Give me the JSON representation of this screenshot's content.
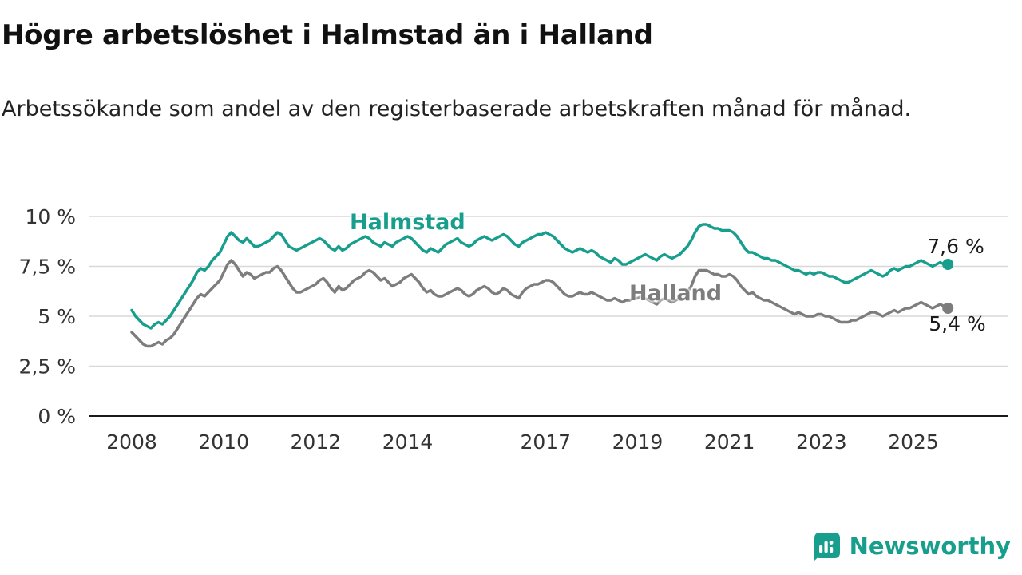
{
  "title": "Högre arbetslöshet i Halmstad än i Halland",
  "subtitle": "Arbetssökande som andel av den registerbaserade arbetskraften månad för månad.",
  "branding": {
    "name": "Newsworthy"
  },
  "colors": {
    "halmstad": "#189e8c",
    "halland": "#7d7d7d",
    "grid": "#d8d8d8",
    "axis": "#1a1a1a",
    "tick_text": "#333333",
    "brand_teal": "#189e8c"
  },
  "chart_data": {
    "type": "line",
    "title": "Högre arbetslöshet i Halmstad än i Halland",
    "subtitle": "Arbetssökande som andel av den registerbaserade arbetskraften månad för månad.",
    "x_unit": "month",
    "x_start": "2008-01",
    "x_end": "2025-10",
    "ylim": [
      0,
      10
    ],
    "grid": true,
    "legend_position": "inline-labels",
    "x_ticks": [
      2008,
      2010,
      2012,
      2014,
      2017,
      2019,
      2021,
      2023,
      2025
    ],
    "y_ticks": [
      {
        "value": 10,
        "label": "10 %"
      },
      {
        "value": 7.5,
        "label": "7,5 %"
      },
      {
        "value": 5,
        "label": "5 %"
      },
      {
        "value": 2.5,
        "label": "2,5 %"
      },
      {
        "value": 0,
        "label": "0 %"
      }
    ],
    "series": [
      {
        "name": "Halmstad",
        "color": "#189e8c",
        "end_label": "7,6 %",
        "end_value": 7.6,
        "values": [
          5.3,
          5.0,
          4.8,
          4.6,
          4.5,
          4.4,
          4.6,
          4.7,
          4.6,
          4.8,
          5.0,
          5.3,
          5.6,
          5.9,
          6.2,
          6.5,
          6.8,
          7.2,
          7.4,
          7.3,
          7.5,
          7.8,
          8.0,
          8.2,
          8.6,
          9.0,
          9.2,
          9.0,
          8.8,
          8.7,
          8.9,
          8.7,
          8.5,
          8.5,
          8.6,
          8.7,
          8.8,
          9.0,
          9.2,
          9.1,
          8.8,
          8.5,
          8.4,
          8.3,
          8.4,
          8.5,
          8.6,
          8.7,
          8.8,
          8.9,
          8.8,
          8.6,
          8.4,
          8.3,
          8.5,
          8.3,
          8.4,
          8.6,
          8.7,
          8.8,
          8.9,
          9.0,
          8.9,
          8.7,
          8.6,
          8.5,
          8.7,
          8.6,
          8.5,
          8.7,
          8.8,
          8.9,
          9.0,
          8.9,
          8.7,
          8.5,
          8.3,
          8.2,
          8.4,
          8.3,
          8.2,
          8.4,
          8.6,
          8.7,
          8.8,
          8.9,
          8.7,
          8.6,
          8.5,
          8.6,
          8.8,
          8.9,
          9.0,
          8.9,
          8.8,
          8.9,
          9.0,
          9.1,
          9.0,
          8.8,
          8.6,
          8.5,
          8.7,
          8.8,
          8.9,
          9.0,
          9.1,
          9.1,
          9.2,
          9.1,
          9.0,
          8.8,
          8.6,
          8.4,
          8.3,
          8.2,
          8.3,
          8.4,
          8.3,
          8.2,
          8.3,
          8.2,
          8.0,
          7.9,
          7.8,
          7.7,
          7.9,
          7.8,
          7.6,
          7.6,
          7.7,
          7.8,
          7.9,
          8.0,
          8.1,
          8.0,
          7.9,
          7.8,
          8.0,
          8.1,
          8.0,
          7.9,
          8.0,
          8.1,
          8.3,
          8.5,
          8.8,
          9.2,
          9.5,
          9.6,
          9.6,
          9.5,
          9.4,
          9.4,
          9.3,
          9.3,
          9.3,
          9.2,
          9.0,
          8.7,
          8.4,
          8.2,
          8.2,
          8.1,
          8.0,
          7.9,
          7.9,
          7.8,
          7.8,
          7.7,
          7.6,
          7.5,
          7.4,
          7.3,
          7.3,
          7.2,
          7.1,
          7.2,
          7.1,
          7.2,
          7.2,
          7.1,
          7.0,
          7.0,
          6.9,
          6.8,
          6.7,
          6.7,
          6.8,
          6.9,
          7.0,
          7.1,
          7.2,
          7.3,
          7.2,
          7.1,
          7.0,
          7.1,
          7.3,
          7.4,
          7.3,
          7.4,
          7.5,
          7.5,
          7.6,
          7.7,
          7.8,
          7.7,
          7.6,
          7.5,
          7.6,
          7.7,
          7.6,
          7.6
        ]
      },
      {
        "name": "Halland",
        "color": "#7d7d7d",
        "end_label": "5,4 %",
        "end_value": 5.4,
        "values": [
          4.2,
          4.0,
          3.8,
          3.6,
          3.5,
          3.5,
          3.6,
          3.7,
          3.6,
          3.8,
          3.9,
          4.1,
          4.4,
          4.7,
          5.0,
          5.3,
          5.6,
          5.9,
          6.1,
          6.0,
          6.2,
          6.4,
          6.6,
          6.8,
          7.2,
          7.6,
          7.8,
          7.6,
          7.3,
          7.0,
          7.2,
          7.1,
          6.9,
          7.0,
          7.1,
          7.2,
          7.2,
          7.4,
          7.5,
          7.3,
          7.0,
          6.7,
          6.4,
          6.2,
          6.2,
          6.3,
          6.4,
          6.5,
          6.6,
          6.8,
          6.9,
          6.7,
          6.4,
          6.2,
          6.5,
          6.3,
          6.4,
          6.6,
          6.8,
          6.9,
          7.0,
          7.2,
          7.3,
          7.2,
          7.0,
          6.8,
          6.9,
          6.7,
          6.5,
          6.6,
          6.7,
          6.9,
          7.0,
          7.1,
          6.9,
          6.7,
          6.4,
          6.2,
          6.3,
          6.1,
          6.0,
          6.0,
          6.1,
          6.2,
          6.3,
          6.4,
          6.3,
          6.1,
          6.0,
          6.1,
          6.3,
          6.4,
          6.5,
          6.4,
          6.2,
          6.1,
          6.2,
          6.4,
          6.3,
          6.1,
          6.0,
          5.9,
          6.2,
          6.4,
          6.5,
          6.6,
          6.6,
          6.7,
          6.8,
          6.8,
          6.7,
          6.5,
          6.3,
          6.1,
          6.0,
          6.0,
          6.1,
          6.2,
          6.1,
          6.1,
          6.2,
          6.1,
          6.0,
          5.9,
          5.8,
          5.8,
          5.9,
          5.8,
          5.7,
          5.8,
          5.8,
          5.9,
          5.9,
          6.0,
          5.9,
          5.8,
          5.7,
          5.6,
          5.8,
          5.9,
          5.8,
          5.7,
          5.8,
          5.9,
          6.0,
          6.2,
          6.5,
          7.0,
          7.3,
          7.3,
          7.3,
          7.2,
          7.1,
          7.1,
          7.0,
          7.0,
          7.1,
          7.0,
          6.8,
          6.5,
          6.3,
          6.1,
          6.2,
          6.0,
          5.9,
          5.8,
          5.8,
          5.7,
          5.6,
          5.5,
          5.4,
          5.3,
          5.2,
          5.1,
          5.2,
          5.1,
          5.0,
          5.0,
          5.0,
          5.1,
          5.1,
          5.0,
          5.0,
          4.9,
          4.8,
          4.7,
          4.7,
          4.7,
          4.8,
          4.8,
          4.9,
          5.0,
          5.1,
          5.2,
          5.2,
          5.1,
          5.0,
          5.1,
          5.2,
          5.3,
          5.2,
          5.3,
          5.4,
          5.4,
          5.5,
          5.6,
          5.7,
          5.6,
          5.5,
          5.4,
          5.5,
          5.6,
          5.5,
          5.4
        ]
      }
    ]
  }
}
